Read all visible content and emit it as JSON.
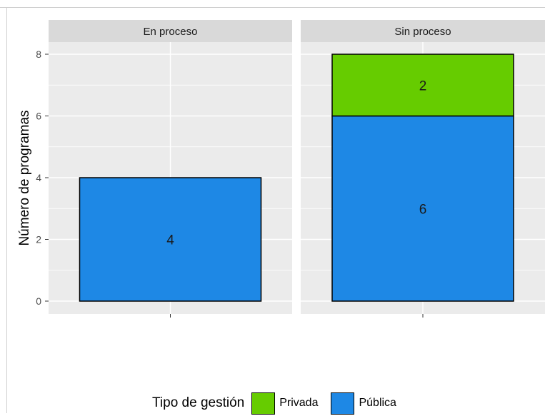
{
  "chart_data": {
    "type": "bar",
    "stacked": true,
    "facets": [
      "En proceso",
      "Sin proceso"
    ],
    "series": [
      {
        "name": "Pública",
        "values": [
          4,
          6
        ],
        "color": "#1E88E5"
      },
      {
        "name": "Privada",
        "values": [
          0,
          2
        ],
        "color": "#66CC00"
      }
    ],
    "data_labels": [
      {
        "facet": "En proceso",
        "series": "Pública",
        "text": "4"
      },
      {
        "facet": "Sin proceso",
        "series": "Pública",
        "text": "6"
      },
      {
        "facet": "Sin proceso",
        "series": "Privada",
        "text": "2"
      }
    ],
    "xlabel": "",
    "ylabel": "Número de programas",
    "yticks": [
      "0",
      "2",
      "4",
      "6",
      "8"
    ],
    "ylim": [
      0,
      8
    ],
    "grid": true,
    "legend_position": "bottom",
    "legend": {
      "title": "Tipo de gestión",
      "entries": [
        {
          "label": "Privada",
          "color": "#66CC00"
        },
        {
          "label": "Pública",
          "color": "#1E88E5"
        }
      ]
    },
    "colors": {
      "panel_bg": "#EBEBEB",
      "strip_bg": "#D9D9D9",
      "grid": "#FFFFFF",
      "bar_outline": "#000000"
    }
  }
}
